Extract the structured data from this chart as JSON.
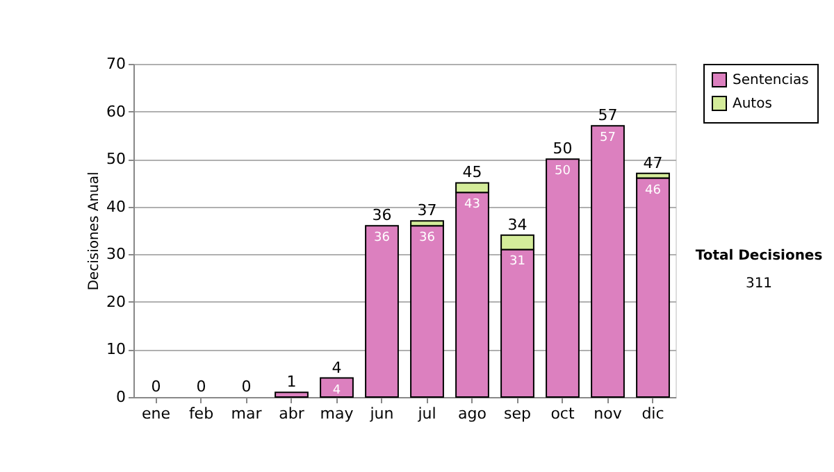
{
  "chart_data": {
    "type": "bar",
    "stacked": true,
    "ylabel": "Decisiones Anual",
    "categories": [
      "ene",
      "feb",
      "mar",
      "abr",
      "may",
      "jun",
      "jul",
      "ago",
      "sep",
      "oct",
      "nov",
      "dic"
    ],
    "series": [
      {
        "name": "Sentencias",
        "color": "#dc80bf",
        "values": [
          0,
          0,
          0,
          1,
          4,
          36,
          36,
          43,
          31,
          50,
          57,
          46
        ],
        "value_labels": [
          null,
          null,
          null,
          null,
          "4",
          "36",
          "36",
          "43",
          "31",
          "50",
          "57",
          "46"
        ]
      },
      {
        "name": "Autos",
        "color": "#d4ec9a",
        "values": [
          0,
          0,
          0,
          0,
          0,
          0,
          1,
          2,
          3,
          0,
          0,
          1
        ]
      }
    ],
    "totals": [
      "0",
      "0",
      "0",
      "1",
      "4",
      "36",
      "37",
      "45",
      "34",
      "50",
      "57",
      "47"
    ],
    "ylim": [
      0,
      70
    ],
    "yticks": [
      0,
      10,
      20,
      30,
      40,
      50,
      60,
      70
    ],
    "grid": "y",
    "legend": "right",
    "annotations": [
      "Total Decisiones",
      "311"
    ]
  }
}
